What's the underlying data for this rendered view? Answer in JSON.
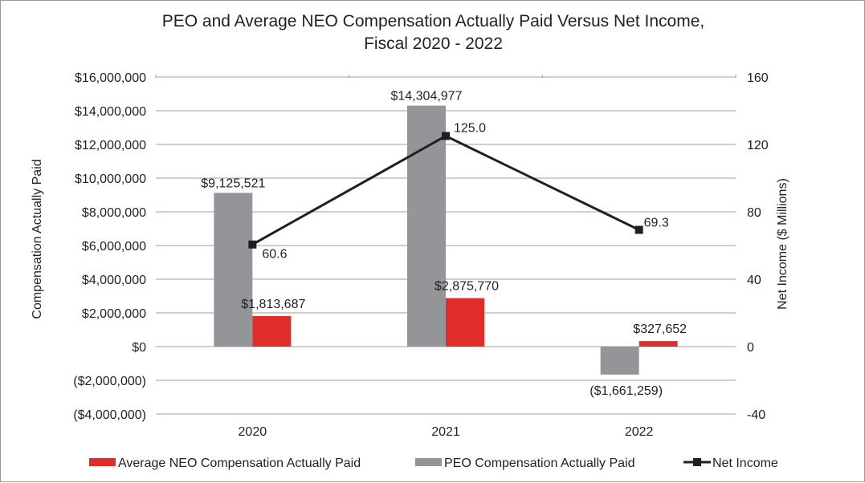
{
  "chart_data": {
    "type": "bar",
    "title_line1": "PEO and Average NEO Compensation Actually Paid Versus Net Income,",
    "title_line2": "Fiscal 2020 - 2022",
    "categories": [
      "2020",
      "2021",
      "2022"
    ],
    "ylabel_left": "Compensation Actually Paid",
    "ylabel_right": "Net Income ($ Millions)",
    "ylim_left": [
      -4000000,
      16000000
    ],
    "ylim_right": [
      -40,
      160
    ],
    "left_ticks": [
      {
        "value": 16000000,
        "label": "$16,000,000"
      },
      {
        "value": 14000000,
        "label": "$14,000,000"
      },
      {
        "value": 12000000,
        "label": "$12,000,000"
      },
      {
        "value": 10000000,
        "label": "$10,000,000"
      },
      {
        "value": 8000000,
        "label": "$8,000,000"
      },
      {
        "value": 6000000,
        "label": "$6,000,000"
      },
      {
        "value": 4000000,
        "label": "$4,000,000"
      },
      {
        "value": 2000000,
        "label": "$2,000,000"
      },
      {
        "value": 0,
        "label": "$0"
      },
      {
        "value": -2000000,
        "label": "($2,000,000)"
      },
      {
        "value": -4000000,
        "label": "($4,000,000)"
      }
    ],
    "right_ticks": [
      {
        "value": 160,
        "label": "160"
      },
      {
        "value": 120,
        "label": "120"
      },
      {
        "value": 80,
        "label": "80"
      },
      {
        "value": 40,
        "label": "40"
      },
      {
        "value": 0,
        "label": "0"
      },
      {
        "value": -40,
        "label": "-40"
      }
    ],
    "grid": true,
    "legend_position": "bottom",
    "series": [
      {
        "name": "PEO Compensation Actually Paid",
        "type": "bar",
        "axis": "left",
        "color": "#939598",
        "values": [
          9125521,
          14304977,
          -1661259
        ],
        "labels": [
          "$9,125,521",
          "$14,304,977",
          "($1,661,259)"
        ]
      },
      {
        "name": "Average NEO Compensation Actually Paid",
        "type": "bar",
        "axis": "left",
        "color": "#e12c2c",
        "values": [
          1813687,
          2875770,
          327652
        ],
        "labels": [
          "$1,813,687",
          "$2,875,770",
          "$327,652"
        ]
      },
      {
        "name": "Net Income",
        "type": "line",
        "axis": "right",
        "color": "#231f20",
        "values": [
          60.6,
          125.0,
          69.3
        ],
        "labels": [
          "60.6",
          "125.0",
          "69.3"
        ]
      }
    ],
    "legend_order": [
      "Average NEO Compensation Actually Paid",
      "PEO Compensation Actually Paid",
      "Net Income"
    ]
  }
}
